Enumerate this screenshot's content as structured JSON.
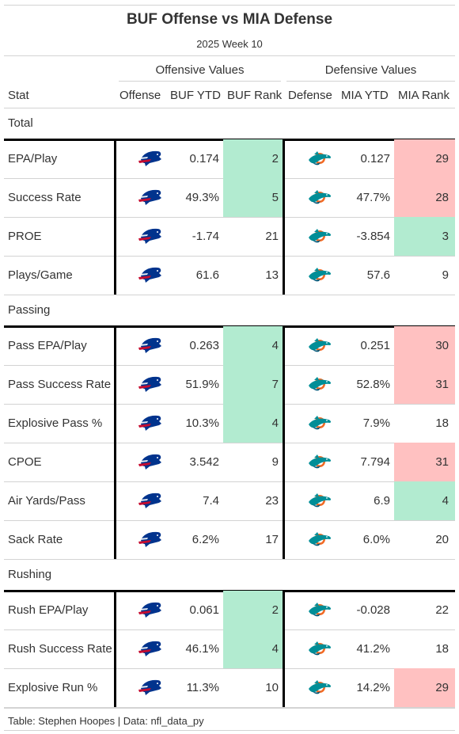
{
  "title": "BUF Offense vs MIA Defense",
  "subtitle": "2025 Week 10",
  "spanners": {
    "offense": "Offensive Values",
    "defense": "Defensive Values"
  },
  "columns": {
    "stat": "Stat",
    "offense": "Offense",
    "off_ytd": "BUF YTD",
    "off_rank": "BUF Rank",
    "defense": "Defense",
    "def_ytd": "MIA YTD",
    "def_rank": "MIA Rank"
  },
  "colors": {
    "good": "#b2ebd0",
    "bad": "#ffc1c1",
    "logo_buf": "buffalo-bills-logo",
    "logo_mia": "miami-dolphins-logo"
  },
  "groups": [
    {
      "label": "Total",
      "rows": [
        {
          "stat": "EPA/Play",
          "off_ytd": "0.174",
          "off_rank": "2",
          "off_color": "good",
          "def_ytd": "0.127",
          "def_rank": "29",
          "def_color": "bad"
        },
        {
          "stat": "Success Rate",
          "off_ytd": "49.3%",
          "off_rank": "5",
          "off_color": "good",
          "def_ytd": "47.7%",
          "def_rank": "28",
          "def_color": "bad"
        },
        {
          "stat": "PROE",
          "off_ytd": "-1.74",
          "off_rank": "21",
          "off_color": "",
          "def_ytd": "-3.854",
          "def_rank": "3",
          "def_color": "good"
        },
        {
          "stat": "Plays/Game",
          "off_ytd": "61.6",
          "off_rank": "13",
          "off_color": "",
          "def_ytd": "57.6",
          "def_rank": "9",
          "def_color": ""
        }
      ]
    },
    {
      "label": "Passing",
      "rows": [
        {
          "stat": "Pass EPA/Play",
          "off_ytd": "0.263",
          "off_rank": "4",
          "off_color": "good",
          "def_ytd": "0.251",
          "def_rank": "30",
          "def_color": "bad"
        },
        {
          "stat": "Pass Success Rate",
          "off_ytd": "51.9%",
          "off_rank": "7",
          "off_color": "good",
          "def_ytd": "52.8%",
          "def_rank": "31",
          "def_color": "bad"
        },
        {
          "stat": "Explosive Pass %",
          "off_ytd": "10.3%",
          "off_rank": "4",
          "off_color": "good",
          "def_ytd": "7.9%",
          "def_rank": "18",
          "def_color": ""
        },
        {
          "stat": "CPOE",
          "off_ytd": "3.542",
          "off_rank": "9",
          "off_color": "",
          "def_ytd": "7.794",
          "def_rank": "31",
          "def_color": "bad"
        },
        {
          "stat": "Air Yards/Pass",
          "off_ytd": "7.4",
          "off_rank": "23",
          "off_color": "",
          "def_ytd": "6.9",
          "def_rank": "4",
          "def_color": "good"
        },
        {
          "stat": "Sack Rate",
          "off_ytd": "6.2%",
          "off_rank": "17",
          "off_color": "",
          "def_ytd": "6.0%",
          "def_rank": "20",
          "def_color": ""
        }
      ]
    },
    {
      "label": "Rushing",
      "rows": [
        {
          "stat": "Rush EPA/Play",
          "off_ytd": "0.061",
          "off_rank": "2",
          "off_color": "good",
          "def_ytd": "-0.028",
          "def_rank": "22",
          "def_color": ""
        },
        {
          "stat": "Rush Success Rate",
          "off_ytd": "46.1%",
          "off_rank": "4",
          "off_color": "good",
          "def_ytd": "41.2%",
          "def_rank": "18",
          "def_color": ""
        },
        {
          "stat": "Explosive Run %",
          "off_ytd": "11.3%",
          "off_rank": "10",
          "off_color": "",
          "def_ytd": "14.2%",
          "def_rank": "29",
          "def_color": "bad"
        }
      ]
    }
  ],
  "footer": "Table: Stephen Hoopes | Data: nfl_data_py"
}
